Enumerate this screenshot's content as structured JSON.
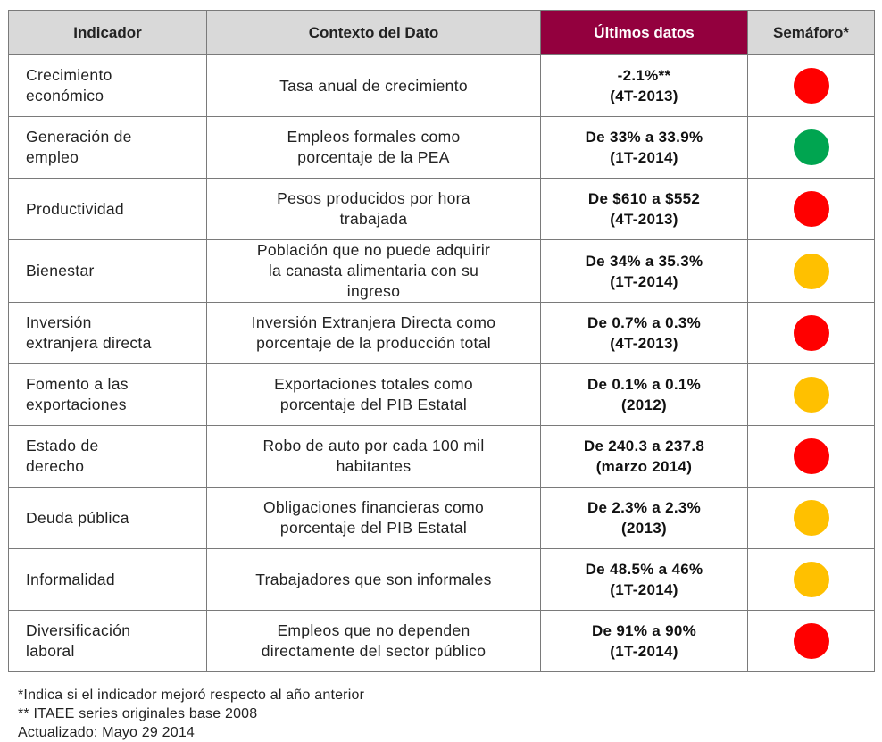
{
  "table": {
    "headers": {
      "indicador": "Indicador",
      "contexto": "Contexto del Dato",
      "ultimos": "Últimos datos",
      "semaforo": "Semáforo*"
    },
    "header_highlight_color": "#93003e",
    "rows": [
      {
        "indicador": [
          "Crecimiento",
          "económico"
        ],
        "contexto": [
          "Tasa  anual de crecimiento"
        ],
        "ultimos": [
          "-2.1%**",
          "(4T-2013)"
        ],
        "semaforo": "red"
      },
      {
        "indicador": [
          "Generación de",
          "empleo"
        ],
        "contexto": [
          "Empleos formales como",
          "porcentaje de la PEA"
        ],
        "ultimos": [
          "De 33% a 33.9%",
          "(1T-2014)"
        ],
        "semaforo": "green"
      },
      {
        "indicador": [
          "Productividad"
        ],
        "contexto": [
          "Pesos producidos por hora",
          "trabajada"
        ],
        "ultimos": [
          "De $610 a $552",
          "(4T-2013)"
        ],
        "semaforo": "red"
      },
      {
        "indicador": [
          "Bienestar"
        ],
        "contexto": [
          "Población que no puede adquirir",
          "la canasta alimentaria con su",
          "ingreso"
        ],
        "ultimos": [
          "De 34% a 35.3%",
          "(1T-2014)"
        ],
        "semaforo": "yellow"
      },
      {
        "indicador": [
          "Inversión",
          "extranjera directa"
        ],
        "contexto": [
          "Inversión Extranjera Directa como",
          "porcentaje de la producción total"
        ],
        "ultimos": [
          "De 0.7% a 0.3%",
          "(4T-2013)"
        ],
        "semaforo": "red"
      },
      {
        "indicador": [
          "Fomento a las",
          "exportaciones"
        ],
        "contexto": [
          "Exportaciones totales como",
          "porcentaje del PIB Estatal"
        ],
        "ultimos": [
          "De 0.1% a 0.1%",
          "(2012)"
        ],
        "semaforo": "yellow"
      },
      {
        "indicador": [
          "Estado de",
          "derecho"
        ],
        "contexto": [
          "Robo de auto por cada 100 mil",
          "habitantes"
        ],
        "ultimos": [
          "De 240.3 a 237.8",
          "(marzo 2014)"
        ],
        "semaforo": "red"
      },
      {
        "indicador": [
          "Deuda pública"
        ],
        "contexto": [
          "Obligaciones financieras como",
          "porcentaje del PIB Estatal"
        ],
        "ultimos": [
          "De 2.3% a 2.3%",
          "(2013)"
        ],
        "semaforo": "yellow"
      },
      {
        "indicador": [
          "Informalidad"
        ],
        "contexto": [
          "Trabajadores que son informales"
        ],
        "ultimos": [
          "De 48.5% a 46%",
          "(1T-2014)"
        ],
        "semaforo": "yellow"
      },
      {
        "indicador": [
          "Diversificación",
          "laboral"
        ],
        "contexto": [
          "Empleos que no dependen",
          "directamente del sector público"
        ],
        "ultimos": [
          "De 91% a 90%",
          "(1T-2014)"
        ],
        "semaforo": "red"
      }
    ]
  },
  "light_colors": {
    "red": "#ff0000",
    "green": "#00a550",
    "yellow": "#ffc000"
  },
  "footnotes": [
    "*Indica si el indicador mejoró respecto al año anterior",
    "** ITAEE series originales base 2008",
    "Actualizado: Mayo 29 2014"
  ]
}
